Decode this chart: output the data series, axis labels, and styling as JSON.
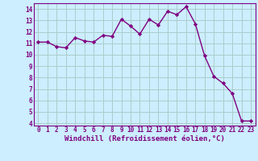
{
  "x": [
    0,
    1,
    2,
    3,
    4,
    5,
    6,
    7,
    8,
    9,
    10,
    11,
    12,
    13,
    14,
    15,
    16,
    17,
    18,
    19,
    20,
    21,
    22,
    23
  ],
  "y": [
    11.1,
    11.1,
    10.7,
    10.6,
    11.5,
    11.2,
    11.1,
    11.7,
    11.6,
    13.1,
    12.5,
    11.8,
    13.1,
    12.6,
    13.8,
    13.5,
    14.2,
    12.7,
    9.9,
    8.1,
    7.5,
    6.6,
    4.2,
    4.2
  ],
  "line_color": "#800080",
  "marker": "D",
  "marker_size": 2.2,
  "xlabel": "Windchill (Refroidissement éolien,°C)",
  "xlabel_fontsize": 6.5,
  "ylim": [
    3.8,
    14.5
  ],
  "xlim": [
    -0.5,
    23.5
  ],
  "yticks": [
    4,
    5,
    6,
    7,
    8,
    9,
    10,
    11,
    12,
    13,
    14
  ],
  "xticks": [
    0,
    1,
    2,
    3,
    4,
    5,
    6,
    7,
    8,
    9,
    10,
    11,
    12,
    13,
    14,
    15,
    16,
    17,
    18,
    19,
    20,
    21,
    22,
    23
  ],
  "bg_color": "#cceeff",
  "grid_color": "#aacccc",
  "tick_fontsize": 5.5,
  "line_width": 1.0,
  "marker_color": "#800080"
}
